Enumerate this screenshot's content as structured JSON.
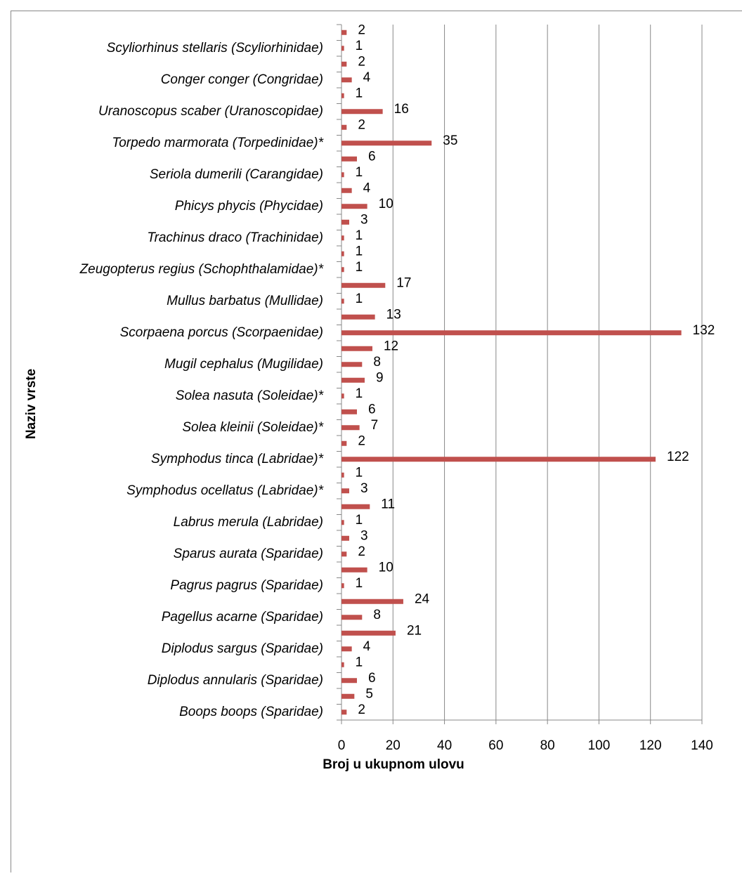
{
  "chart_data": {
    "type": "barh",
    "xlabel": "Broj u ukupnom ulovu",
    "ylabel": "Naziv vrste",
    "categories": [
      "Boops boops (Sparidae)",
      null,
      "Diplodus annularis (Sparidae)",
      null,
      "Diplodus sargus (Sparidae)",
      null,
      "Pagellus acarne (Sparidae)",
      null,
      "Pagrus pagrus (Sparidae)",
      null,
      "Sparus aurata (Sparidae)",
      null,
      "Labrus merula (Labridae)",
      null,
      "Symphodus ocellatus (Labridae)*",
      null,
      "Symphodus tinca (Labridae)*",
      null,
      "Solea kleinii (Soleidae)*",
      null,
      "Solea nasuta (Soleidae)*",
      null,
      "Mugil cephalus (Mugilidae)",
      null,
      "Scorpaena porcus (Scorpaenidae)",
      null,
      "Mullus barbatus (Mullidae)",
      null,
      "Zeugopterus regius (Schophthalamidae)*",
      null,
      "Trachinus draco (Trachinidae)",
      null,
      "Phicys phycis (Phycidae)",
      null,
      "Seriola dumerili (Carangidae)",
      null,
      "Torpedo marmorata (Torpedinidae)*",
      null,
      "Uranoscopus scaber (Uranoscopidae)",
      null,
      "Conger conger (Congridae)",
      null,
      "Scyliorhinus stellaris (Scyliorhinidae)",
      null
    ],
    "values": [
      2,
      5,
      6,
      1,
      4,
      21,
      8,
      24,
      1,
      10,
      2,
      3,
      1,
      11,
      3,
      1,
      122,
      2,
      7,
      6,
      1,
      9,
      8,
      12,
      132,
      13,
      1,
      17,
      1,
      1,
      1,
      3,
      10,
      4,
      1,
      6,
      35,
      2,
      16,
      1,
      4,
      2,
      1,
      2
    ],
    "color": "#c0504d",
    "xlim": [
      0,
      140
    ],
    "xticks": [
      0,
      20,
      40,
      60,
      80,
      100,
      120,
      140
    ],
    "grid": true
  }
}
